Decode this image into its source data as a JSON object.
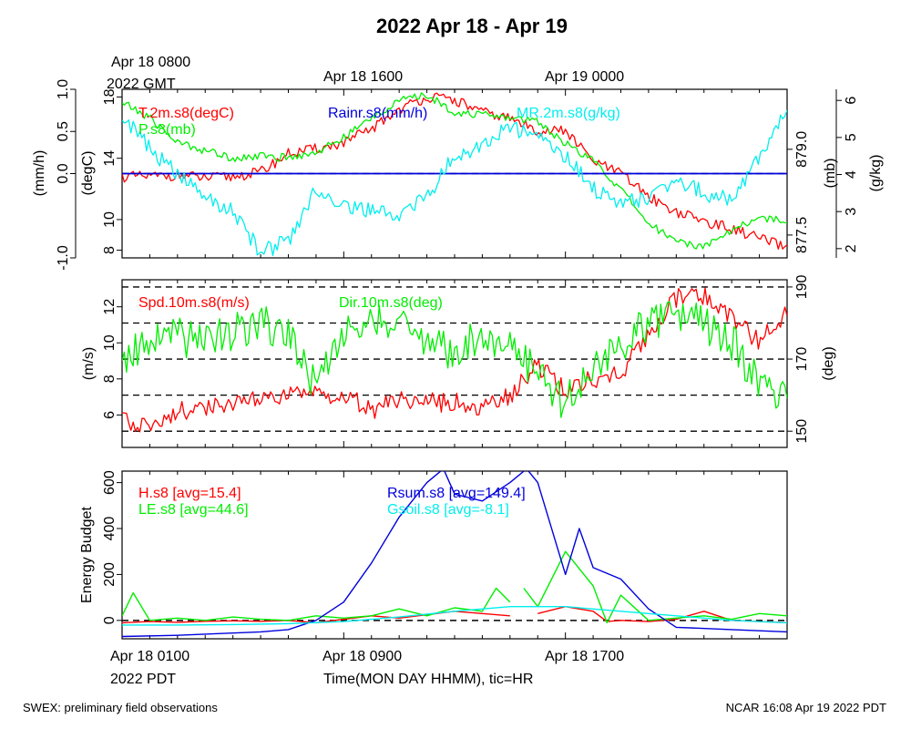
{
  "title": "2022 Apr 18 - Apr 19",
  "top_time_labels": [
    "Apr 18 0800",
    "Apr 18 1600",
    "Apr 19 0000"
  ],
  "top_timezone": "2022 GMT",
  "bottom_time_labels": [
    "Apr 18 0100",
    "Apr 18 0900",
    "Apr 18 1700"
  ],
  "bottom_timezone": "2022 PDT",
  "x_axis_label": "Time(MON DAY HHMM), tic=HR",
  "footer_left": "SWEX: preliminary field observations",
  "footer_right": "NCAR 16:08 Apr 19 2022 PDT",
  "colors": {
    "red": "#ff0000",
    "green": "#00ee00",
    "blue": "#0000dd",
    "cyan": "#00eeee",
    "black": "#000000"
  },
  "chart_data": [
    {
      "type": "line",
      "panel": "surface state",
      "x_unit": "hours since Apr 18 0100 PDT",
      "x_range": [
        0,
        24
      ],
      "axes": [
        {
          "label": "(mm/h)",
          "range": [
            -1.0,
            1.0
          ],
          "ticks": [
            "-1.0",
            "0.0",
            "0.5",
            "1.0"
          ]
        },
        {
          "label": "(degC)",
          "range": [
            7.5,
            18.5
          ],
          "ticks": [
            "8",
            "10",
            "14",
            "18"
          ]
        },
        {
          "label": "(mb)",
          "range": [
            877.1,
            880.05
          ],
          "ticks": [
            "877.5",
            "879.0"
          ]
        },
        {
          "label": "(g/kg)",
          "range": [
            1.75,
            6.3
          ],
          "ticks": [
            "2",
            "3",
            "4",
            "5",
            "6"
          ]
        }
      ],
      "series": [
        {
          "name": "T.2m.s8(degC)",
          "color": "#ff0000",
          "axis": "(degC)",
          "points": [
            [
              0,
              12.8
            ],
            [
              1,
              12.8
            ],
            [
              2,
              12.9
            ],
            [
              3,
              12.7
            ],
            [
              4,
              12.8
            ],
            [
              5,
              13.1
            ],
            [
              6,
              14.3
            ],
            [
              7,
              14.6
            ],
            [
              8,
              15.0
            ],
            [
              9,
              15.9
            ],
            [
              10,
              17.2
            ],
            [
              11,
              18.0
            ],
            [
              12,
              17.8
            ],
            [
              13,
              17.0
            ],
            [
              14,
              16.6
            ],
            [
              15,
              15.8
            ],
            [
              16,
              15.8
            ],
            [
              17,
              13.8
            ],
            [
              18,
              13.0
            ],
            [
              19,
              11.5
            ],
            [
              20,
              10.5
            ],
            [
              21,
              9.9
            ],
            [
              22,
              9.4
            ],
            [
              23,
              8.8
            ],
            [
              24,
              8.1
            ]
          ]
        },
        {
          "name": "P.s8(mb)",
          "color": "#00ee00",
          "axis": "(mb)",
          "points": [
            [
              0,
              879.82
            ],
            [
              1,
              879.55
            ],
            [
              2,
              879.12
            ],
            [
              3,
              878.98
            ],
            [
              4,
              878.85
            ],
            [
              5,
              878.88
            ],
            [
              6,
              878.85
            ],
            [
              7,
              878.95
            ],
            [
              8,
              879.2
            ],
            [
              9,
              879.55
            ],
            [
              10,
              879.85
            ],
            [
              11,
              879.95
            ],
            [
              12,
              879.65
            ],
            [
              13,
              879.6
            ],
            [
              14,
              879.55
            ],
            [
              15,
              879.5
            ],
            [
              16,
              879.1
            ],
            [
              17,
              878.8
            ],
            [
              18,
              878.3
            ],
            [
              19,
              877.7
            ],
            [
              20,
              877.4
            ],
            [
              21,
              877.3
            ],
            [
              22,
              877.6
            ],
            [
              23,
              877.8
            ],
            [
              24,
              877.75
            ]
          ]
        },
        {
          "name": "Rainr.s8(mm/h)",
          "color": "#0000dd",
          "axis": "(mm/h)",
          "points": [
            [
              0,
              0.0
            ],
            [
              24,
              0.0
            ]
          ]
        },
        {
          "name": "MR.2m.s8(g/kg)",
          "color": "#00eeee",
          "axis": "(g/kg)",
          "points": [
            [
              0,
              5.6
            ],
            [
              1,
              4.7
            ],
            [
              2,
              4.0
            ],
            [
              3,
              3.4
            ],
            [
              4,
              3.0
            ],
            [
              5,
              1.9
            ],
            [
              6,
              2.2
            ],
            [
              7,
              3.6
            ],
            [
              8,
              3.2
            ],
            [
              9,
              3.0
            ],
            [
              10,
              2.9
            ],
            [
              11,
              3.4
            ],
            [
              12,
              4.5
            ],
            [
              13,
              4.8
            ],
            [
              14,
              5.3
            ],
            [
              15,
              5.0
            ],
            [
              16,
              4.5
            ],
            [
              17,
              3.6
            ],
            [
              18,
              3.2
            ],
            [
              19,
              3.4
            ],
            [
              20,
              3.9
            ],
            [
              21,
              3.5
            ],
            [
              22,
              3.3
            ],
            [
              23,
              4.5
            ],
            [
              24,
              5.7
            ]
          ]
        }
      ]
    },
    {
      "type": "line",
      "panel": "wind",
      "x_unit": "hours since Apr 18 0100 PDT",
      "x_range": [
        0,
        24
      ],
      "axes": [
        {
          "label": "(m/s)",
          "range": [
            4.2,
            13.5
          ],
          "ticks": [
            "6",
            "8",
            "10",
            "12"
          ]
        },
        {
          "label": "(deg)",
          "range": [
            145.5,
            192.0
          ],
          "ticks": [
            "150",
            "170",
            "190"
          ]
        }
      ],
      "series": [
        {
          "name": "Spd.10m.s8(m/s)",
          "color": "#ff0000",
          "axis": "(m/s)",
          "points": [
            [
              0,
              5.7
            ],
            [
              1,
              5.5
            ],
            [
              2,
              6.2
            ],
            [
              3,
              6.4
            ],
            [
              4,
              6.6
            ],
            [
              5,
              6.8
            ],
            [
              6,
              7.0
            ],
            [
              7,
              7.2
            ],
            [
              8,
              7.1
            ],
            [
              9,
              6.3
            ],
            [
              10,
              6.8
            ],
            [
              11,
              6.7
            ],
            [
              12,
              6.7
            ],
            [
              13,
              6.4
            ],
            [
              14,
              7.0
            ],
            [
              15,
              8.8
            ],
            [
              16,
              7.3
            ],
            [
              17,
              8.0
            ],
            [
              18,
              8.3
            ],
            [
              19,
              10.5
            ],
            [
              20,
              12.5
            ],
            [
              21,
              12.6
            ],
            [
              22,
              11.5
            ],
            [
              23,
              10.0
            ],
            [
              24,
              11.8
            ]
          ]
        },
        {
          "name": "Dir.10m.s8(deg)",
          "color": "#00ee00",
          "axis": "(deg)",
          "points": [
            [
              0,
              170
            ],
            [
              1,
              176
            ],
            [
              2,
              176
            ],
            [
              3,
              174
            ],
            [
              4,
              178
            ],
            [
              5,
              180
            ],
            [
              6,
              177
            ],
            [
              7,
              163
            ],
            [
              8,
              176
            ],
            [
              9,
              183
            ],
            [
              10,
              179
            ],
            [
              11,
              174
            ],
            [
              12,
              172
            ],
            [
              13,
              176
            ],
            [
              14,
              172
            ],
            [
              15,
              166
            ],
            [
              16,
              158
            ],
            [
              17,
              167
            ],
            [
              18,
              174
            ],
            [
              19,
              180
            ],
            [
              20,
              183
            ],
            [
              21,
              179
            ],
            [
              22,
              175
            ],
            [
              23,
              162
            ],
            [
              24,
              158
            ]
          ]
        }
      ],
      "reference_lines_deg": [
        150,
        160,
        170,
        180,
        190
      ]
    },
    {
      "type": "line",
      "panel": "energy budget",
      "x_unit": "hours since Apr 18 0100 PDT",
      "x_range": [
        0,
        24
      ],
      "axes": [
        {
          "label": "Energy Budget",
          "range": [
            -80,
            650
          ],
          "ticks": [
            "0",
            "200",
            "400",
            "600"
          ]
        }
      ],
      "series": [
        {
          "name": "H.s8 [avg=15.4]",
          "color": "#ff0000",
          "segments": [
            [
              [
                0,
                -10
              ],
              [
                1,
                -5
              ],
              [
                2,
                -8
              ],
              [
                3,
                -4
              ],
              [
                4,
                -2
              ],
              [
                5,
                -4
              ],
              [
                6,
                0
              ],
              [
                7,
                -10
              ],
              [
                8,
                5
              ],
              [
                9,
                20
              ],
              [
                10,
                10
              ],
              [
                11,
                25
              ],
              [
                12,
                40
              ],
              [
                13,
                30
              ],
              [
                14,
                20
              ]
            ],
            [
              [
                15,
                30
              ],
              [
                16,
                60
              ],
              [
                17,
                40
              ],
              [
                17.5,
                -5
              ],
              [
                18,
                0
              ],
              [
                19,
                -5
              ],
              [
                20,
                5
              ],
              [
                21,
                40
              ],
              [
                22,
                0
              ],
              [
                23,
                -5
              ],
              [
                24,
                -10
              ]
            ]
          ]
        },
        {
          "name": "LE.s8 [avg=44.6]",
          "color": "#00ee00",
          "segments": [
            [
              [
                0,
                20
              ],
              [
                0.4,
                120
              ],
              [
                1,
                0
              ],
              [
                2,
                10
              ],
              [
                3,
                0
              ],
              [
                4,
                15
              ],
              [
                5,
                5
              ],
              [
                6,
                0
              ],
              [
                7,
                20
              ],
              [
                8,
                10
              ],
              [
                9,
                20
              ],
              [
                10,
                50
              ],
              [
                11,
                20
              ],
              [
                12,
                55
              ],
              [
                13,
                40
              ],
              [
                13.5,
                140
              ],
              [
                14,
                80
              ]
            ],
            [
              [
                14.5,
                140
              ],
              [
                15,
                60
              ],
              [
                16,
                300
              ],
              [
                17,
                150
              ],
              [
                17.5,
                -10
              ],
              [
                18,
                110
              ],
              [
                19,
                0
              ],
              [
                20,
                10
              ],
              [
                21,
                20
              ],
              [
                22,
                5
              ],
              [
                23,
                30
              ],
              [
                24,
                20
              ]
            ]
          ]
        },
        {
          "name": "Rsum.s8 [avg=149.4]",
          "color": "#0000dd",
          "segments": [
            [
              [
                0,
                -70
              ],
              [
                2,
                -65
              ],
              [
                4,
                -55
              ],
              [
                5,
                -50
              ],
              [
                6,
                -40
              ],
              [
                7,
                0
              ],
              [
                8,
                80
              ],
              [
                9,
                250
              ],
              [
                10,
                450
              ],
              [
                11,
                600
              ],
              [
                11.6,
                660
              ],
              [
                12,
                550
              ],
              [
                13,
                520
              ],
              [
                14,
                600
              ],
              [
                14.6,
                660
              ],
              [
                15,
                600
              ],
              [
                16,
                200
              ],
              [
                16.5,
                400
              ],
              [
                17,
                230
              ],
              [
                18,
                180
              ],
              [
                19,
                50
              ],
              [
                20,
                -30
              ],
              [
                22,
                -40
              ],
              [
                23,
                -45
              ],
              [
                24,
                -50
              ]
            ]
          ]
        },
        {
          "name": "Gsoil.s8 [avg=-8.1]",
          "color": "#00eeee",
          "segments": [
            [
              [
                0,
                -20
              ],
              [
                2,
                -20
              ],
              [
                4,
                -18
              ],
              [
                6,
                -14
              ],
              [
                8,
                -5
              ],
              [
                10,
                15
              ],
              [
                12,
                40
              ],
              [
                14,
                60
              ],
              [
                16,
                60
              ],
              [
                18,
                40
              ],
              [
                20,
                20
              ],
              [
                22,
                0
              ],
              [
                24,
                -10
              ]
            ]
          ]
        }
      ]
    }
  ]
}
